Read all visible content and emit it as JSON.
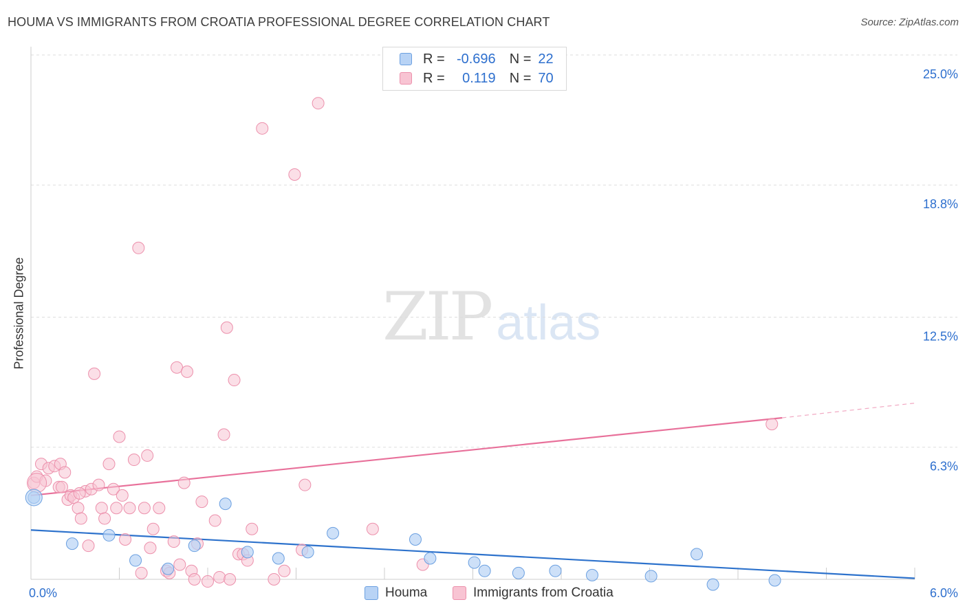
{
  "header": {
    "title": "HOUMA VS IMMIGRANTS FROM CROATIA PROFESSIONAL DEGREE CORRELATION CHART",
    "source": "Source: ZipAtlas.com"
  },
  "watermark": {
    "zip": "ZIP",
    "atlas": "atlas"
  },
  "legend": {
    "houma": {
      "r_label": "R =",
      "r_value": "-0.696",
      "n_label": "N =",
      "n_value": "22"
    },
    "croatia": {
      "r_label": "R =",
      "r_value": "0.119",
      "n_label": "N =",
      "n_value": "70"
    }
  },
  "bottom_legend": {
    "houma": "Houma",
    "croatia": "Immigrants from Croatia"
  },
  "colors": {
    "houma_fill": "#b8d3f5",
    "houma_stroke": "#6a9fe0",
    "houma_line": "#2d72cc",
    "croatia_fill": "#f8c4d3",
    "croatia_stroke": "#ec8fab",
    "croatia_line": "#e8709a",
    "axis_label": "#2d6fce",
    "grid": "#dddddd"
  },
  "chart_data": {
    "type": "scatter",
    "title": "HOUMA VS IMMIGRANTS FROM CROATIA PROFESSIONAL DEGREE CORRELATION CHART",
    "xlabel": "",
    "ylabel": "Professional Degree",
    "xlim": [
      0,
      6.0
    ],
    "ylim": [
      0,
      25.0
    ],
    "x_ticks": [
      "0.0%",
      "6.0%"
    ],
    "y_ticks": [
      {
        "value": 6.3,
        "label": "6.3%"
      },
      {
        "value": 12.5,
        "label": "12.5%"
      },
      {
        "value": 18.8,
        "label": "18.8%"
      },
      {
        "value": 25.0,
        "label": "25.0%"
      }
    ],
    "grid": true,
    "legend_position": "top-center",
    "series": [
      {
        "name": "Houma",
        "r": -0.696,
        "n": 22,
        "trend": {
          "x": [
            0,
            6.0
          ],
          "y": [
            2.35,
            0.05
          ]
        },
        "points": [
          [
            0.02,
            3.9
          ],
          [
            0.28,
            1.7
          ],
          [
            0.53,
            2.1
          ],
          [
            0.71,
            0.9
          ],
          [
            0.93,
            0.5
          ],
          [
            1.11,
            1.6
          ],
          [
            1.32,
            3.6
          ],
          [
            1.47,
            1.3
          ],
          [
            1.68,
            1.0
          ],
          [
            1.88,
            1.3
          ],
          [
            2.05,
            2.2
          ],
          [
            2.61,
            1.9
          ],
          [
            2.71,
            1.0
          ],
          [
            3.01,
            0.8
          ],
          [
            3.08,
            0.4
          ],
          [
            3.31,
            0.3
          ],
          [
            3.56,
            0.4
          ],
          [
            3.81,
            0.2
          ],
          [
            4.21,
            0.15
          ],
          [
            4.52,
            1.2
          ],
          [
            4.63,
            -0.25
          ],
          [
            5.05,
            -0.05
          ]
        ]
      },
      {
        "name": "Immigrants from Croatia",
        "r": 0.119,
        "n": 70,
        "trend": {
          "x": [
            0,
            5.1
          ],
          "y": [
            4.0,
            7.7
          ]
        },
        "trend_dashed": {
          "x": [
            5.1,
            6.0
          ],
          "y": [
            7.7,
            8.4
          ]
        },
        "points": [
          [
            0.02,
            4.6
          ],
          [
            0.04,
            4.9
          ],
          [
            0.07,
            5.5
          ],
          [
            0.1,
            4.7
          ],
          [
            0.12,
            5.3
          ],
          [
            0.16,
            5.4
          ],
          [
            0.19,
            4.4
          ],
          [
            0.2,
            5.5
          ],
          [
            0.23,
            5.1
          ],
          [
            0.25,
            3.8
          ],
          [
            0.27,
            4.0
          ],
          [
            0.29,
            3.9
          ],
          [
            0.32,
            3.4
          ],
          [
            0.34,
            2.9
          ],
          [
            0.37,
            4.2
          ],
          [
            0.39,
            1.6
          ],
          [
            0.41,
            4.3
          ],
          [
            0.43,
            9.8
          ],
          [
            0.46,
            4.5
          ],
          [
            0.48,
            3.4
          ],
          [
            0.5,
            2.9
          ],
          [
            0.53,
            5.5
          ],
          [
            0.56,
            4.3
          ],
          [
            0.58,
            3.4
          ],
          [
            0.6,
            6.8
          ],
          [
            0.62,
            4.0
          ],
          [
            0.64,
            1.9
          ],
          [
            0.67,
            3.4
          ],
          [
            0.7,
            5.7
          ],
          [
            0.73,
            15.8
          ],
          [
            0.75,
            0.3
          ],
          [
            0.77,
            3.4
          ],
          [
            0.79,
            5.9
          ],
          [
            0.81,
            1.5
          ],
          [
            0.83,
            2.4
          ],
          [
            0.87,
            3.4
          ],
          [
            0.92,
            0.4
          ],
          [
            0.94,
            0.3
          ],
          [
            0.97,
            1.8
          ],
          [
            0.99,
            10.1
          ],
          [
            1.01,
            0.7
          ],
          [
            1.04,
            4.6
          ],
          [
            1.06,
            9.9
          ],
          [
            1.09,
            0.4
          ],
          [
            1.11,
            0.0
          ],
          [
            1.13,
            1.7
          ],
          [
            1.16,
            3.7
          ],
          [
            1.2,
            -0.1
          ],
          [
            1.25,
            2.8
          ],
          [
            1.28,
            0.1
          ],
          [
            1.31,
            6.9
          ],
          [
            1.33,
            12.0
          ],
          [
            1.35,
            0.0
          ],
          [
            1.38,
            9.5
          ],
          [
            1.41,
            1.2
          ],
          [
            1.44,
            1.2
          ],
          [
            1.47,
            0.9
          ],
          [
            1.5,
            2.4
          ],
          [
            1.57,
            21.5
          ],
          [
            1.65,
            0.0
          ],
          [
            1.72,
            0.4
          ],
          [
            1.79,
            19.3
          ],
          [
            1.84,
            1.4
          ],
          [
            1.86,
            4.5
          ],
          [
            1.95,
            22.7
          ],
          [
            2.32,
            2.4
          ],
          [
            2.66,
            0.7
          ],
          [
            5.03,
            7.4
          ],
          [
            0.21,
            4.4
          ],
          [
            0.33,
            4.1
          ]
        ]
      }
    ]
  }
}
